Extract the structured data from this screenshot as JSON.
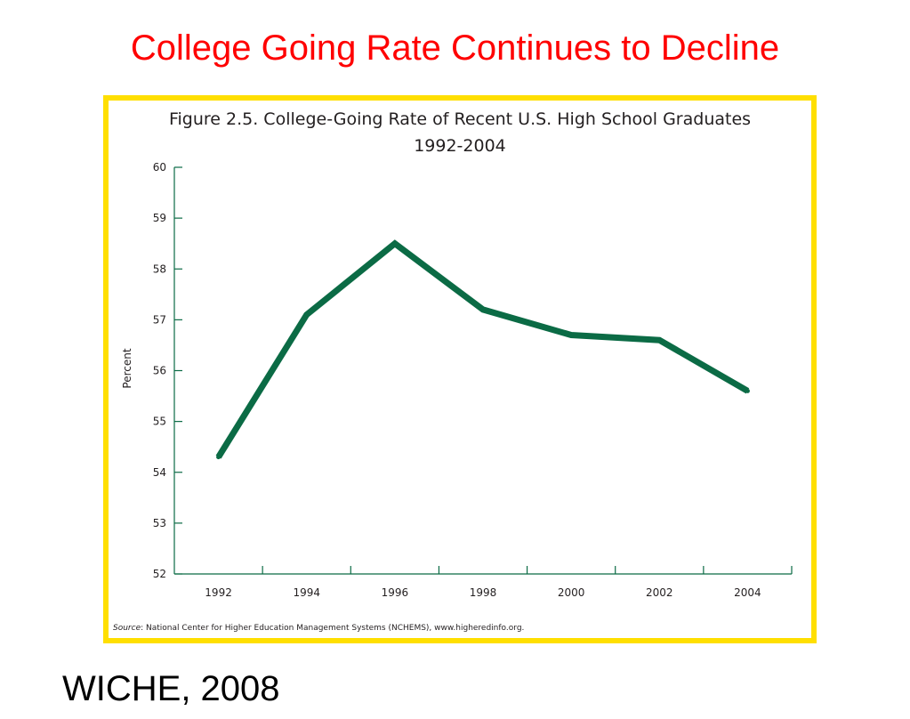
{
  "slide": {
    "title": "College Going Rate Continues to Decline",
    "credit": "WICHE, 2008"
  },
  "colors": {
    "title": "#ff0000",
    "frame_border": "#ffdf00",
    "line": "#0b6b45",
    "axis": "#0b6b45",
    "text": "#231f20"
  },
  "chart_data": {
    "type": "line",
    "title": "Figure 2.5.  College-Going Rate of Recent U.S. High School Graduates",
    "subtitle": "1992-2004",
    "xlabel": "",
    "ylabel": "Percent",
    "x": [
      1992,
      1994,
      1996,
      1998,
      2000,
      2002,
      2004
    ],
    "x_tick_labels": [
      "1992",
      "1994",
      "1996",
      "1998",
      "2000",
      "2002",
      "2004"
    ],
    "y_ticks": [
      52,
      53,
      54,
      55,
      56,
      57,
      58,
      59,
      60
    ],
    "y_tick_labels": [
      "52",
      "53",
      "54",
      "55",
      "56",
      "57",
      "58",
      "59",
      "60"
    ],
    "ylim": [
      52,
      60
    ],
    "xlim": [
      1991,
      2005
    ],
    "series": [
      {
        "values": [
          54.3,
          57.1,
          58.5,
          57.2,
          56.7,
          56.6,
          55.6
        ]
      }
    ],
    "grid": false,
    "legend": "none",
    "source_label": "Source",
    "source_text": ": National Center for Higher Education Management Systems (NCHEMS), www.higheredinfo.org."
  }
}
